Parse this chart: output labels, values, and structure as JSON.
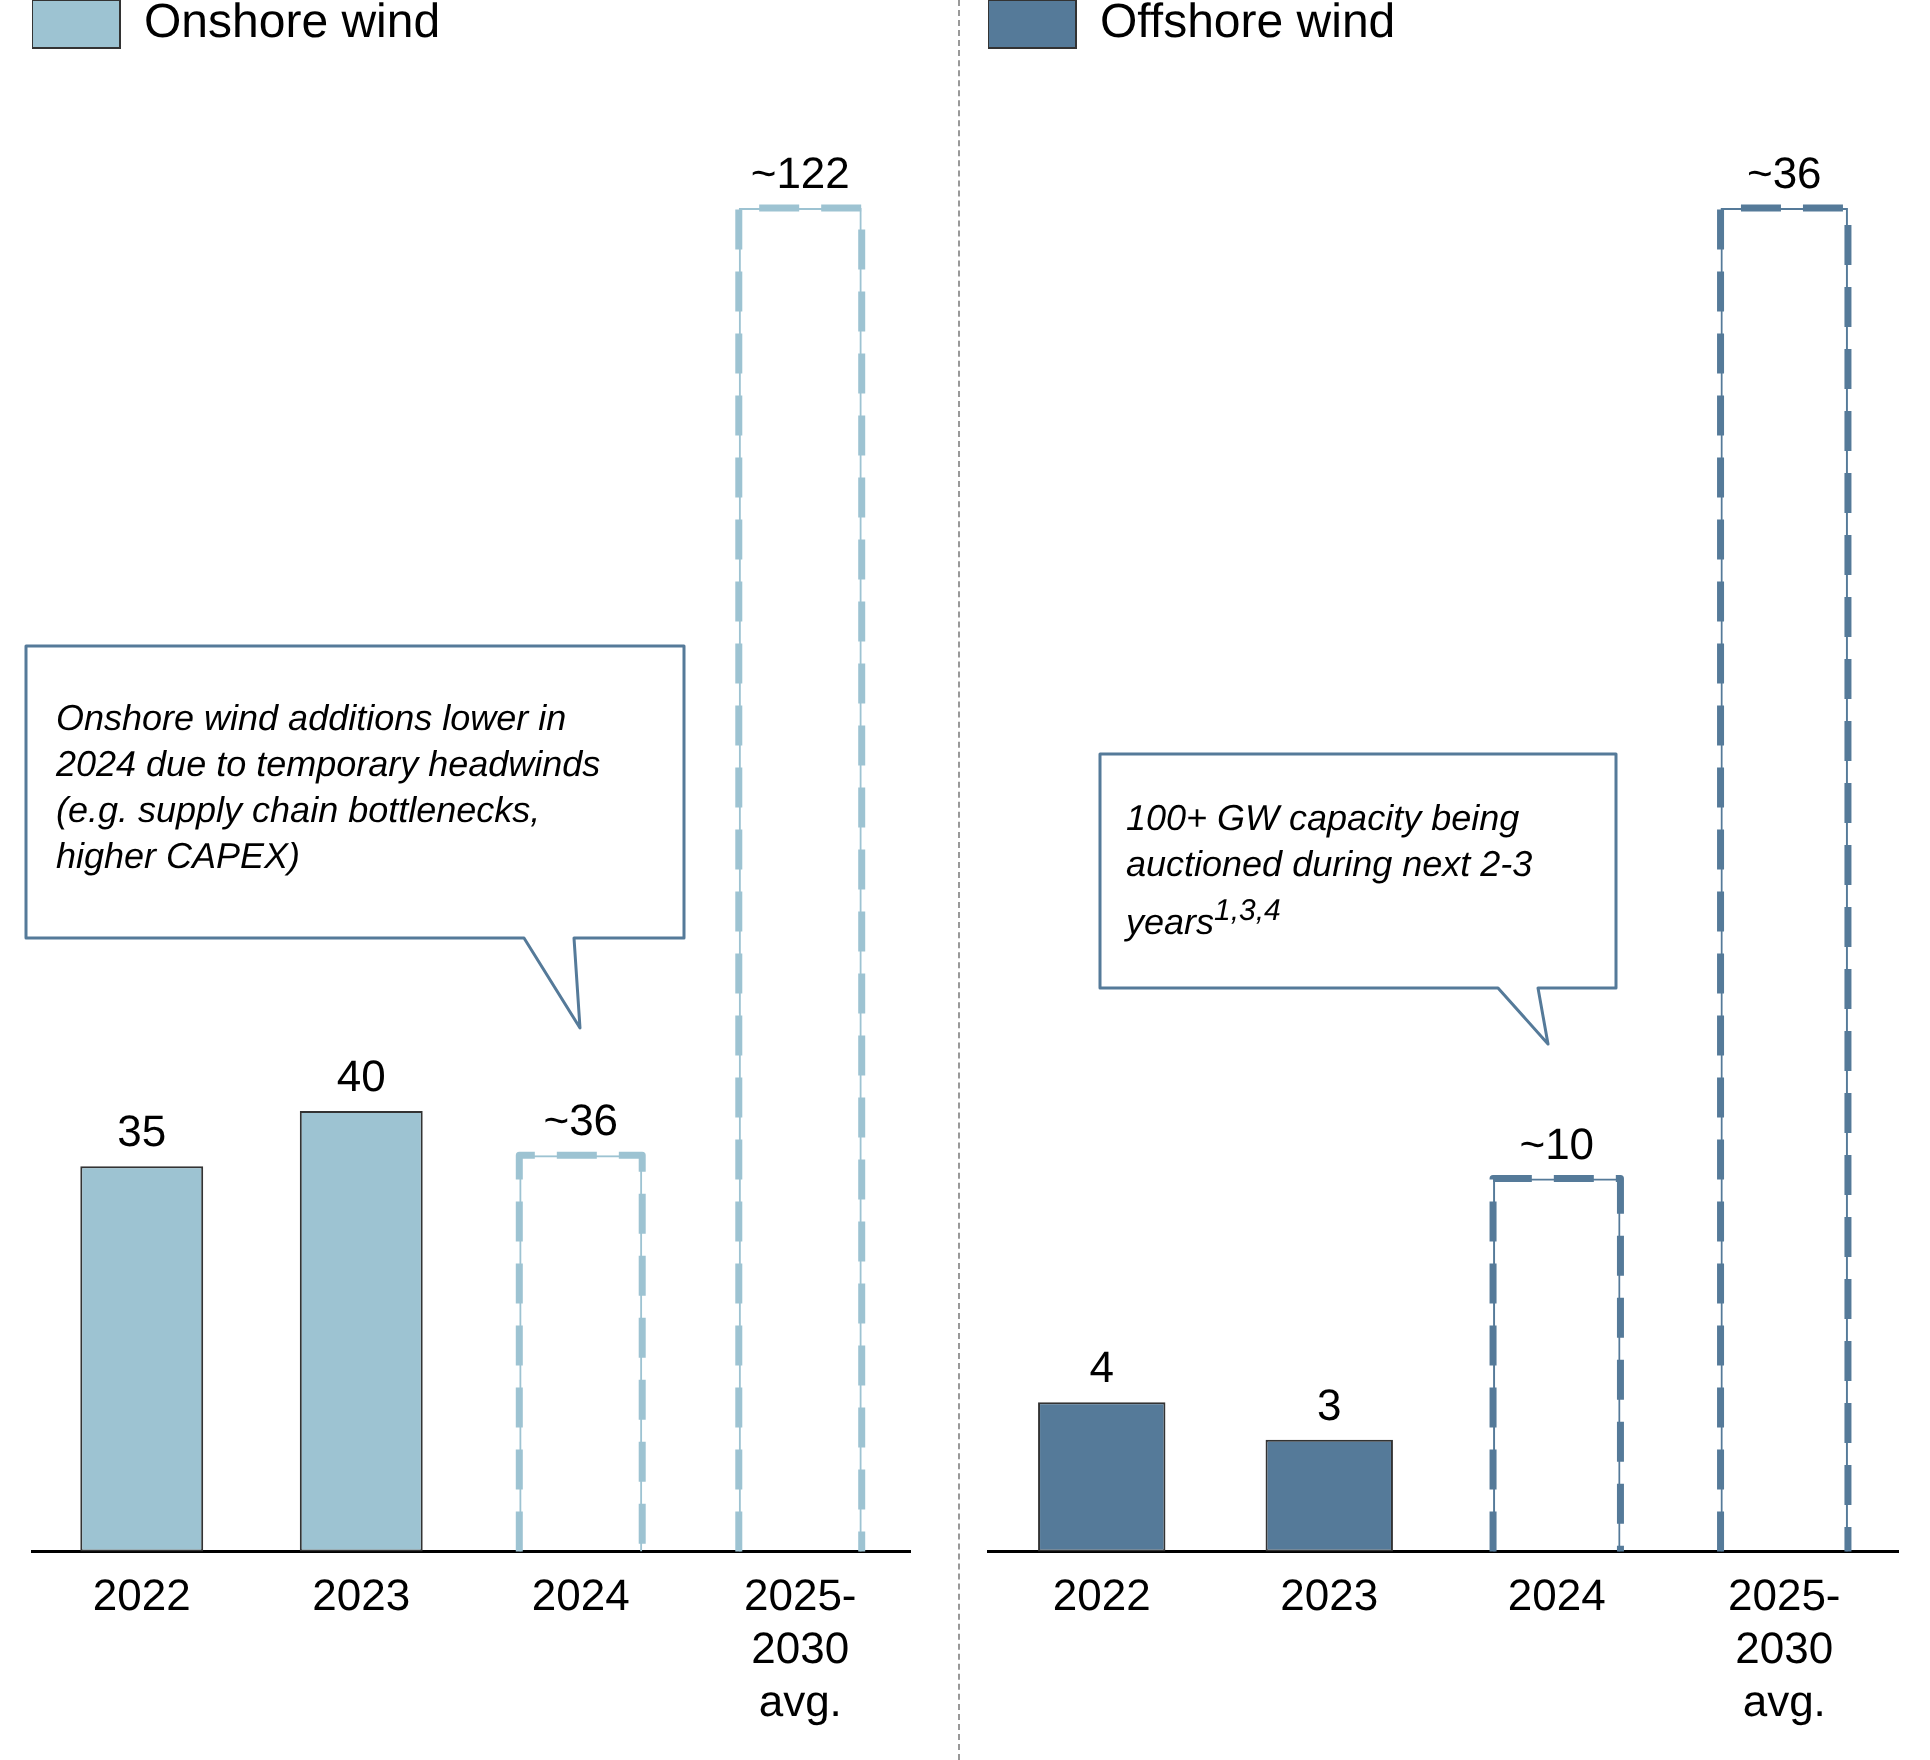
{
  "chart_data": [
    {
      "type": "bar",
      "categories": [
        "2022",
        "2023",
        "2024",
        "2025-2030 avg."
      ],
      "legend": "top left",
      "tick_labels": "x",
      "series": [
        {
          "name": "Onshore wind",
          "color": "#9dc3d2",
          "values": [
            35,
            40,
            null,
            null
          ],
          "value_labels": [
            "35",
            "40",
            null,
            null
          ]
        },
        {
          "color": "#9dc3d2",
          "line_style": "dashed",
          "values": [
            null,
            null,
            36,
            122
          ],
          "value_labels": [
            null,
            null,
            "~36",
            "~122"
          ]
        }
      ],
      "annotations": [
        "Onshore wind additions lower in 2024 due to temporary headwinds (e.g.  supply chain bottlenecks, higher CAPEX)"
      ]
    },
    {
      "type": "bar",
      "categories": [
        "2022",
        "2023",
        "2024",
        "2025-2030 avg."
      ],
      "legend": "top left",
      "tick_labels": "x",
      "series": [
        {
          "name": "Offshore wind",
          "color": "#557a99",
          "values": [
            4,
            3,
            null,
            null
          ],
          "value_labels": [
            "4",
            "3",
            null,
            null
          ]
        },
        {
          "color": "#557a99",
          "line_style": "dashed",
          "values": [
            null,
            null,
            10,
            36
          ],
          "value_labels": [
            null,
            null,
            "~10",
            "~36"
          ]
        }
      ],
      "annotations": [
        "100+ GW capacity being auctioned during next 2-3 years$^{1,3,4}$"
      ]
    }
  ]
}
